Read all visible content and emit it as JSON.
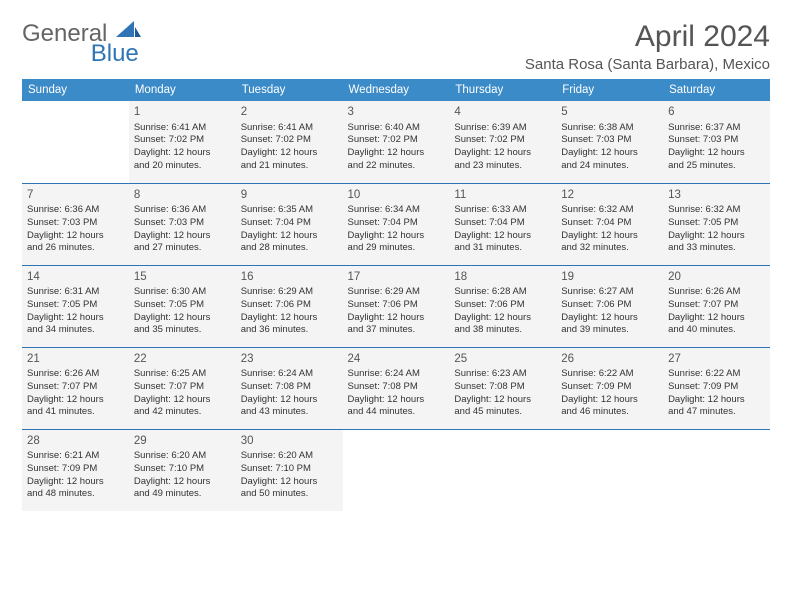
{
  "brand": {
    "part1": "General",
    "part2": "Blue"
  },
  "title": "April 2024",
  "location": "Santa Rosa (Santa Barbara), Mexico",
  "headers": [
    "Sunday",
    "Monday",
    "Tuesday",
    "Wednesday",
    "Thursday",
    "Friday",
    "Saturday"
  ],
  "colors": {
    "header_bg": "#3b8bc9",
    "header_text": "#ffffff",
    "week_border": "#2f75b5",
    "cell_bg": "#f4f4f4",
    "text": "#333333",
    "title_text": "#555555"
  },
  "weeks": [
    [
      null,
      {
        "n": "1",
        "sr": "Sunrise: 6:41 AM",
        "ss": "Sunset: 7:02 PM",
        "d1": "Daylight: 12 hours",
        "d2": "and 20 minutes."
      },
      {
        "n": "2",
        "sr": "Sunrise: 6:41 AM",
        "ss": "Sunset: 7:02 PM",
        "d1": "Daylight: 12 hours",
        "d2": "and 21 minutes."
      },
      {
        "n": "3",
        "sr": "Sunrise: 6:40 AM",
        "ss": "Sunset: 7:02 PM",
        "d1": "Daylight: 12 hours",
        "d2": "and 22 minutes."
      },
      {
        "n": "4",
        "sr": "Sunrise: 6:39 AM",
        "ss": "Sunset: 7:02 PM",
        "d1": "Daylight: 12 hours",
        "d2": "and 23 minutes."
      },
      {
        "n": "5",
        "sr": "Sunrise: 6:38 AM",
        "ss": "Sunset: 7:03 PM",
        "d1": "Daylight: 12 hours",
        "d2": "and 24 minutes."
      },
      {
        "n": "6",
        "sr": "Sunrise: 6:37 AM",
        "ss": "Sunset: 7:03 PM",
        "d1": "Daylight: 12 hours",
        "d2": "and 25 minutes."
      }
    ],
    [
      {
        "n": "7",
        "sr": "Sunrise: 6:36 AM",
        "ss": "Sunset: 7:03 PM",
        "d1": "Daylight: 12 hours",
        "d2": "and 26 minutes."
      },
      {
        "n": "8",
        "sr": "Sunrise: 6:36 AM",
        "ss": "Sunset: 7:03 PM",
        "d1": "Daylight: 12 hours",
        "d2": "and 27 minutes."
      },
      {
        "n": "9",
        "sr": "Sunrise: 6:35 AM",
        "ss": "Sunset: 7:04 PM",
        "d1": "Daylight: 12 hours",
        "d2": "and 28 minutes."
      },
      {
        "n": "10",
        "sr": "Sunrise: 6:34 AM",
        "ss": "Sunset: 7:04 PM",
        "d1": "Daylight: 12 hours",
        "d2": "and 29 minutes."
      },
      {
        "n": "11",
        "sr": "Sunrise: 6:33 AM",
        "ss": "Sunset: 7:04 PM",
        "d1": "Daylight: 12 hours",
        "d2": "and 31 minutes."
      },
      {
        "n": "12",
        "sr": "Sunrise: 6:32 AM",
        "ss": "Sunset: 7:04 PM",
        "d1": "Daylight: 12 hours",
        "d2": "and 32 minutes."
      },
      {
        "n": "13",
        "sr": "Sunrise: 6:32 AM",
        "ss": "Sunset: 7:05 PM",
        "d1": "Daylight: 12 hours",
        "d2": "and 33 minutes."
      }
    ],
    [
      {
        "n": "14",
        "sr": "Sunrise: 6:31 AM",
        "ss": "Sunset: 7:05 PM",
        "d1": "Daylight: 12 hours",
        "d2": "and 34 minutes."
      },
      {
        "n": "15",
        "sr": "Sunrise: 6:30 AM",
        "ss": "Sunset: 7:05 PM",
        "d1": "Daylight: 12 hours",
        "d2": "and 35 minutes."
      },
      {
        "n": "16",
        "sr": "Sunrise: 6:29 AM",
        "ss": "Sunset: 7:06 PM",
        "d1": "Daylight: 12 hours",
        "d2": "and 36 minutes."
      },
      {
        "n": "17",
        "sr": "Sunrise: 6:29 AM",
        "ss": "Sunset: 7:06 PM",
        "d1": "Daylight: 12 hours",
        "d2": "and 37 minutes."
      },
      {
        "n": "18",
        "sr": "Sunrise: 6:28 AM",
        "ss": "Sunset: 7:06 PM",
        "d1": "Daylight: 12 hours",
        "d2": "and 38 minutes."
      },
      {
        "n": "19",
        "sr": "Sunrise: 6:27 AM",
        "ss": "Sunset: 7:06 PM",
        "d1": "Daylight: 12 hours",
        "d2": "and 39 minutes."
      },
      {
        "n": "20",
        "sr": "Sunrise: 6:26 AM",
        "ss": "Sunset: 7:07 PM",
        "d1": "Daylight: 12 hours",
        "d2": "and 40 minutes."
      }
    ],
    [
      {
        "n": "21",
        "sr": "Sunrise: 6:26 AM",
        "ss": "Sunset: 7:07 PM",
        "d1": "Daylight: 12 hours",
        "d2": "and 41 minutes."
      },
      {
        "n": "22",
        "sr": "Sunrise: 6:25 AM",
        "ss": "Sunset: 7:07 PM",
        "d1": "Daylight: 12 hours",
        "d2": "and 42 minutes."
      },
      {
        "n": "23",
        "sr": "Sunrise: 6:24 AM",
        "ss": "Sunset: 7:08 PM",
        "d1": "Daylight: 12 hours",
        "d2": "and 43 minutes."
      },
      {
        "n": "24",
        "sr": "Sunrise: 6:24 AM",
        "ss": "Sunset: 7:08 PM",
        "d1": "Daylight: 12 hours",
        "d2": "and 44 minutes."
      },
      {
        "n": "25",
        "sr": "Sunrise: 6:23 AM",
        "ss": "Sunset: 7:08 PM",
        "d1": "Daylight: 12 hours",
        "d2": "and 45 minutes."
      },
      {
        "n": "26",
        "sr": "Sunrise: 6:22 AM",
        "ss": "Sunset: 7:09 PM",
        "d1": "Daylight: 12 hours",
        "d2": "and 46 minutes."
      },
      {
        "n": "27",
        "sr": "Sunrise: 6:22 AM",
        "ss": "Sunset: 7:09 PM",
        "d1": "Daylight: 12 hours",
        "d2": "and 47 minutes."
      }
    ],
    [
      {
        "n": "28",
        "sr": "Sunrise: 6:21 AM",
        "ss": "Sunset: 7:09 PM",
        "d1": "Daylight: 12 hours",
        "d2": "and 48 minutes."
      },
      {
        "n": "29",
        "sr": "Sunrise: 6:20 AM",
        "ss": "Sunset: 7:10 PM",
        "d1": "Daylight: 12 hours",
        "d2": "and 49 minutes."
      },
      {
        "n": "30",
        "sr": "Sunrise: 6:20 AM",
        "ss": "Sunset: 7:10 PM",
        "d1": "Daylight: 12 hours",
        "d2": "and 50 minutes."
      },
      null,
      null,
      null,
      null
    ]
  ]
}
